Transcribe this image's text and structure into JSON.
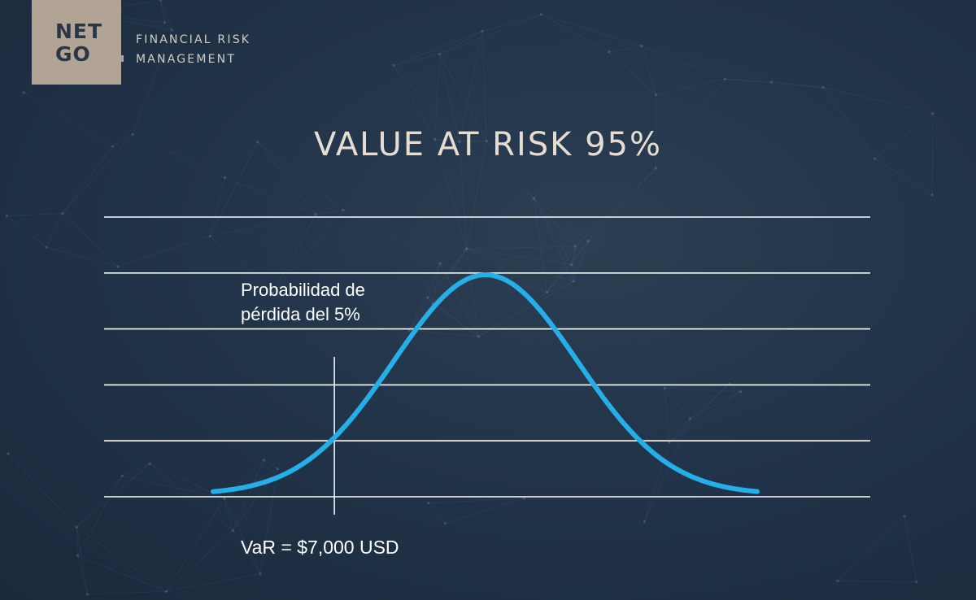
{
  "brand": {
    "logo_line1": "NET",
    "logo_line2": "GO",
    "tagline_line1": "FINANCIAL RISK",
    "tagline_line2": "MANAGEMENT",
    "logo_bg_color": "#b1a495"
  },
  "chart_data": {
    "type": "line",
    "title": "VALUE AT RISK 95%",
    "distribution": "normal",
    "series": [
      {
        "color": "#25aee8"
      }
    ],
    "grid": true,
    "grid_color": "#ffffff",
    "gridline_count": 6,
    "annotation_line1": "Probabilidad de",
    "annotation_line2": "pérdida del 5%",
    "var_label": "VaR = $7,000 USD",
    "var_marker_quantile": 0.05
  }
}
